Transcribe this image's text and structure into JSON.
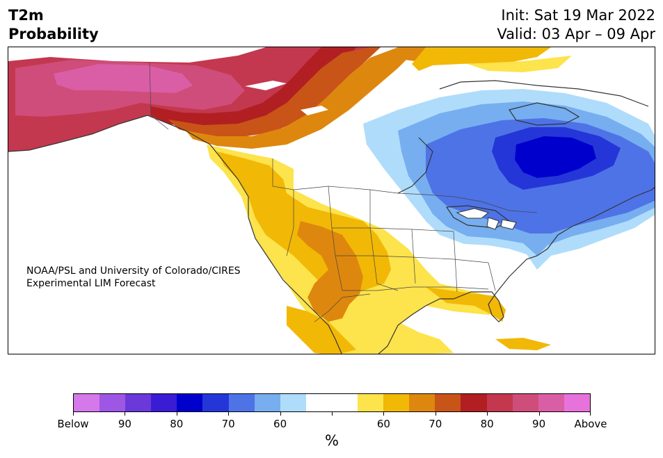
{
  "header": {
    "title_line1": "T2m",
    "title_line2": "Probability",
    "init": "Init: Sat 19 Mar 2022",
    "valid": "Valid: 03 Apr – 09 Apr"
  },
  "credit": {
    "line1": "NOAA/PSL and University of Colorado/CIRES",
    "line2": "Experimental LIM Forecast"
  },
  "colorbar": {
    "colors": [
      "#d478ea",
      "#9e56e4",
      "#6b38d9",
      "#3a1cd5",
      "#0000cc",
      "#2536d8",
      "#4e73e6",
      "#76aef0",
      "#b0dcfb",
      "#ffffff",
      "#ffffff",
      "#fde34c",
      "#f1b806",
      "#de870e",
      "#c85418",
      "#b11f22",
      "#c3384f",
      "#cf4d7a",
      "#da5ea6",
      "#e872dc"
    ],
    "tick_labels": [
      "Below",
      "90",
      "80",
      "70",
      "60",
      "",
      "60",
      "70",
      "80",
      "90",
      "Above"
    ],
    "unit": "%"
  },
  "map": {
    "region": "North America",
    "land_color": "#ffffff",
    "outline_color": "#333333"
  }
}
